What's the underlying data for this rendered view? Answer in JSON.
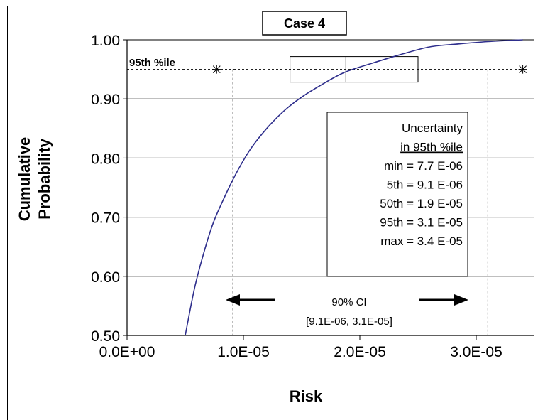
{
  "chart_data": {
    "type": "line",
    "title": "Case 4",
    "xlabel": "Risk",
    "ylabel": "Cumulative Probability",
    "xlim": [
      0,
      3.5e-05
    ],
    "ylim": [
      0.5,
      1.0
    ],
    "x_ticks": [
      0,
      1e-05,
      2e-05,
      3e-05
    ],
    "x_tick_labels": [
      "0.0E+00",
      "1.0E-05",
      "2.0E-05",
      "3.0E-05"
    ],
    "y_ticks": [
      0.5,
      0.6,
      0.7,
      0.8,
      0.9,
      1.0
    ],
    "y_tick_labels": [
      "0.50",
      "0.60",
      "0.70",
      "0.80",
      "0.90",
      "1.00"
    ],
    "grid": "horizontal",
    "series": [
      {
        "color": "#2e2e8c",
        "x": [
          5e-06,
          5.8e-06,
          6.6e-06,
          7.4e-06,
          8.4e-06,
          9.4e-06,
          1.06e-05,
          1.2e-05,
          1.35e-05,
          1.5e-05,
          1.68e-05,
          1.87e-05,
          2.1e-05,
          2.35e-05,
          2.6e-05,
          2.85e-05,
          3.1e-05,
          3.4e-05
        ],
        "y": [
          0.5,
          0.58,
          0.64,
          0.69,
          0.735,
          0.775,
          0.815,
          0.85,
          0.88,
          0.903,
          0.925,
          0.945,
          0.96,
          0.975,
          0.988,
          0.993,
          0.997,
          1.0
        ]
      }
    ],
    "percentile_line": {
      "label": "95th %ile",
      "y": 0.95,
      "whisker_min": 7.7e-06,
      "whisker_max": 3.4e-05,
      "box_low": 1.4e-05,
      "box_median": 1.88e-05,
      "box_high": 2.5e-05
    },
    "ci_lines": [
      9.1e-06,
      3.1e-05
    ],
    "uncertainty_box": {
      "lines": [
        "Uncertainty",
        "in 95th %ile",
        "min = 7.7 E-06",
        "5th = 9.1 E-06",
        "50th = 1.9 E-05",
        "95th = 3.1 E-05",
        "max = 3.4 E-05"
      ]
    },
    "ci_annotation": {
      "line1": "90% CI",
      "line2": "[9.1E-06, 3.1E-05]"
    }
  }
}
